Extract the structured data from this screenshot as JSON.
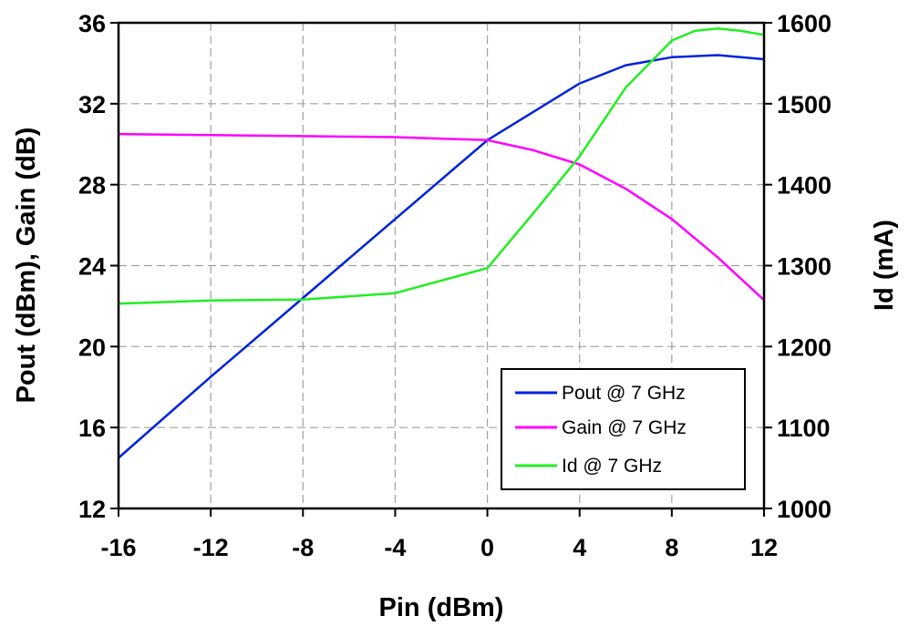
{
  "chart_data": {
    "type": "line",
    "title": "",
    "xlabel": "Pin (dBm)",
    "ylabel_left": "Pout (dBm), Gain (dB)",
    "ylabel_right": "Id (mA)",
    "xlim": [
      -16,
      12
    ],
    "ylim_left": [
      12,
      36
    ],
    "ylim_right": [
      1000,
      1600
    ],
    "x_ticks": [
      -16,
      -12,
      -8,
      -4,
      0,
      4,
      8,
      12
    ],
    "y_left_ticks": [
      12,
      16,
      20,
      24,
      28,
      32,
      36
    ],
    "y_right_ticks": [
      1000,
      1100,
      1200,
      1300,
      1400,
      1500,
      1600
    ],
    "grid": true,
    "legend_position": "bottom-right",
    "series": [
      {
        "name": "Pout @ 7 GHz",
        "axis": "left",
        "color": "#0022dd",
        "x": [
          -16,
          -12,
          -8,
          -4,
          0,
          4,
          6,
          8,
          10,
          12
        ],
        "y": [
          14.5,
          18.5,
          22.4,
          26.3,
          30.2,
          33.0,
          33.9,
          34.3,
          34.4,
          34.2
        ]
      },
      {
        "name": "Gain @ 7 GHz",
        "axis": "left",
        "color": "#ff00ff",
        "x": [
          -16,
          -12,
          -8,
          -4,
          0,
          2,
          4,
          6,
          8,
          10,
          12
        ],
        "y": [
          30.5,
          30.45,
          30.4,
          30.35,
          30.2,
          29.7,
          29.0,
          27.8,
          26.3,
          24.4,
          22.3
        ]
      },
      {
        "name": "Id @ 7 GHz",
        "axis": "right",
        "color": "#22ee22",
        "x": [
          -16,
          -12,
          -8,
          -4,
          0,
          2,
          4,
          6,
          8,
          9,
          10,
          11,
          12
        ],
        "y": [
          1253,
          1257,
          1258,
          1266,
          1297,
          1365,
          1435,
          1520,
          1578,
          1590,
          1593,
          1590,
          1585
        ]
      }
    ]
  }
}
